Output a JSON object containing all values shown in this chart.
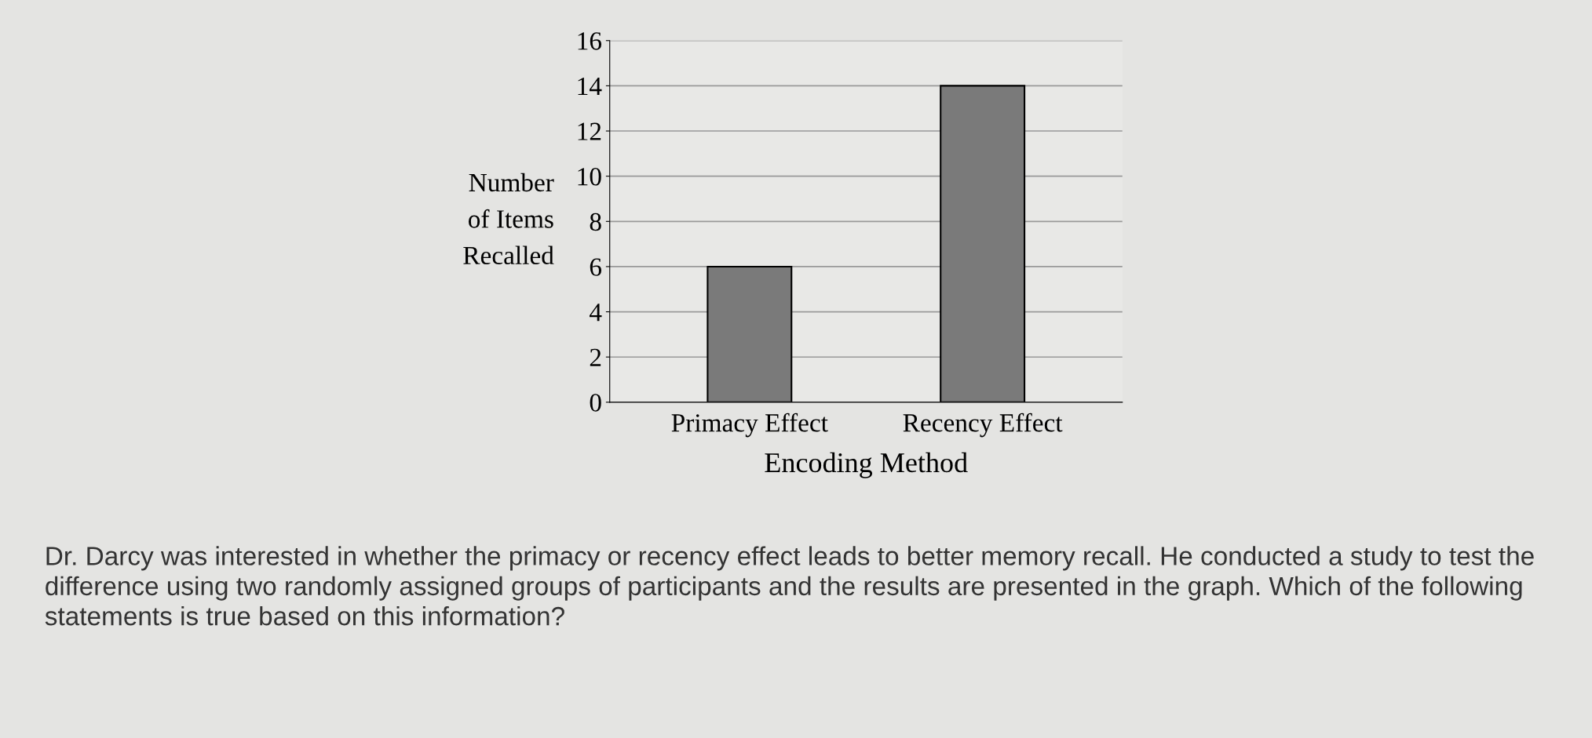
{
  "chart_data": {
    "type": "bar",
    "categories": [
      "Primacy Effect",
      "Recency Effect"
    ],
    "values": [
      6,
      14
    ],
    "color": "#7a7a7a",
    "xlabel": "Encoding Method",
    "ylabel": "Number\nof Items\nRecalled",
    "ylim": [
      0,
      16
    ],
    "yticks": [
      0,
      2,
      4,
      6,
      8,
      10,
      12,
      14,
      16
    ],
    "grid": "y",
    "annotations": [
      "Dr. Darcy was interested in whether the primacy or recency effect leads to better memory recall. He conducted a study to test the difference using two randomly assigned groups of participants and the results are presented in the graph. Which of the following statements is true based on this information?"
    ]
  }
}
